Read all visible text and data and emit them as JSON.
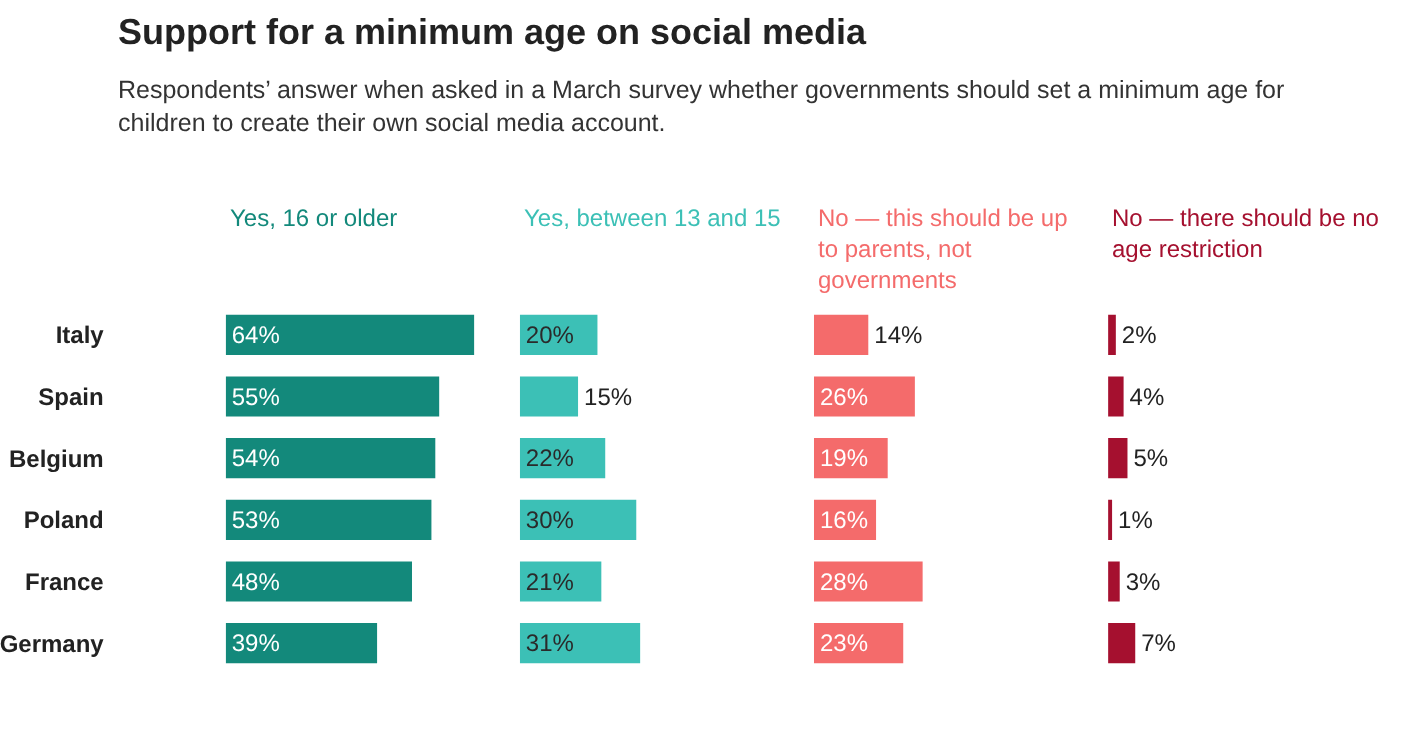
{
  "chart_data": [
    {
      "type": "bar",
      "orientation": "horizontal",
      "title": "Support for a minimum age on social media",
      "subtitle": "Respondents’ answer when asked in a March survey whether governments should set a minimum age for children to create their own social media account.",
      "categories": [
        "Italy",
        "Spain",
        "Belgium",
        "Poland",
        "France",
        "Germany"
      ],
      "tick_labels": "y",
      "series": [
        {
          "name": "Yes, 16 or older",
          "color": "#13897b",
          "values": [
            64,
            55,
            54,
            53,
            48,
            39
          ],
          "value_labels": [
            "64%",
            "55%",
            "54%",
            "53%",
            "48%",
            "39%"
          ]
        }
      ]
    },
    {
      "type": "bar",
      "orientation": "horizontal",
      "tick_labels": false,
      "series": [
        {
          "name": "Yes, between 13 and 15",
          "color": "#3cc0b6",
          "values": [
            20,
            15,
            22,
            30,
            21,
            31
          ],
          "value_labels": [
            "20%",
            "15%",
            "22%",
            "30%",
            "21%",
            "31%"
          ]
        }
      ]
    },
    {
      "type": "bar",
      "orientation": "horizontal",
      "tick_labels": false,
      "series": [
        {
          "name": "No — this should be up to parents, not governments",
          "color": "#f46b6b",
          "values": [
            14,
            26,
            19,
            16,
            28,
            23
          ],
          "value_labels": [
            "14%",
            "26%",
            "19%",
            "16%",
            "28%",
            "23%"
          ]
        }
      ]
    },
    {
      "type": "bar",
      "orientation": "horizontal",
      "tick_labels": false,
      "series": [
        {
          "name": "No — there should be no age restriction",
          "color": "#a5102f",
          "values": [
            2,
            4,
            5,
            1,
            3,
            7
          ],
          "value_labels": [
            "2%",
            "4%",
            "5%",
            "1%",
            "3%",
            "7%"
          ]
        }
      ]
    }
  ]
}
